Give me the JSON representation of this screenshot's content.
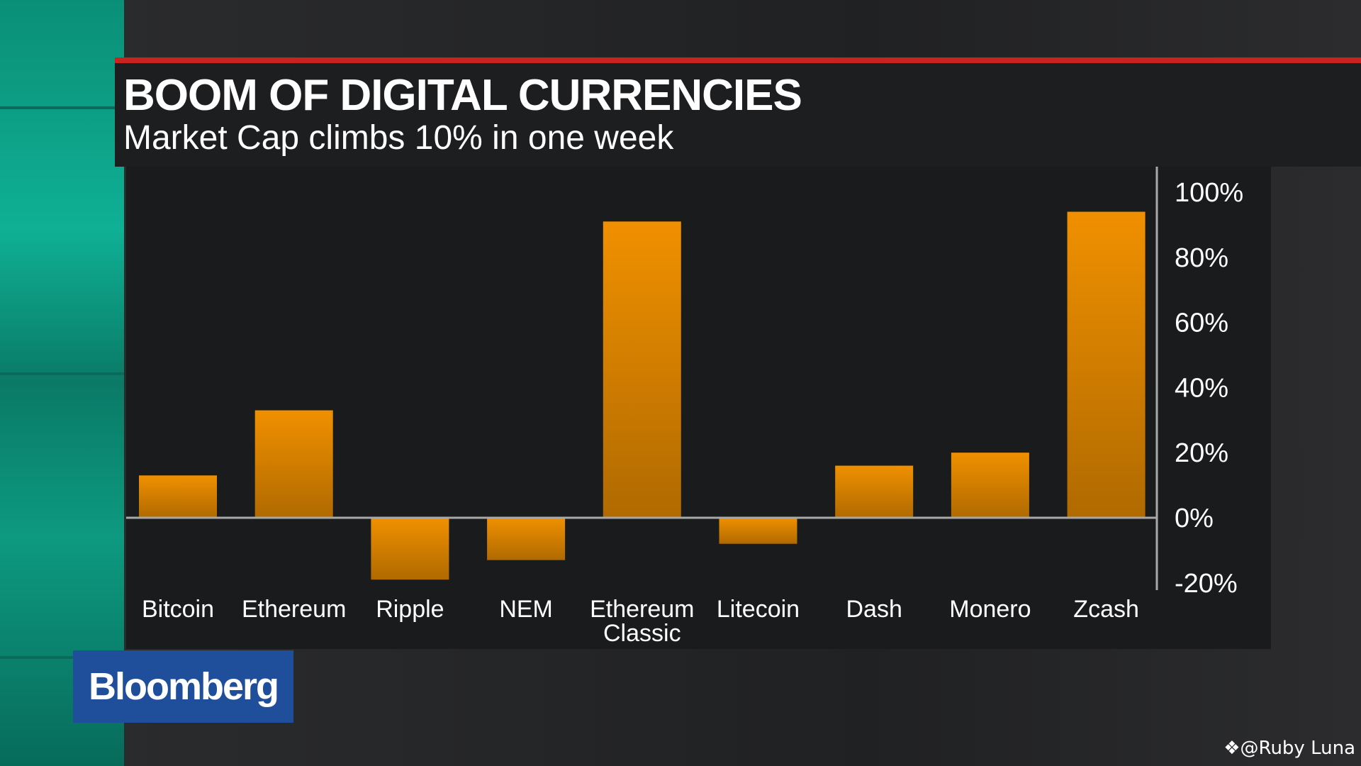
{
  "header": {
    "title": "BOOM OF DIGITAL CURRENCIES",
    "subtitle": "Market Cap climbs 10% in one week"
  },
  "logo": "Bloomberg",
  "watermark": "@Ruby Luna",
  "colors": {
    "bar": "#f09000",
    "bar_bottom": "#b06a00",
    "accent_red": "#c8231e",
    "logo_blue": "#1f4e9a",
    "background": "#1a1b1d"
  },
  "chart_data": {
    "type": "bar",
    "title": "BOOM OF DIGITAL CURRENCIES",
    "subtitle": "Market Cap climbs 10% in one week",
    "categories": [
      "Bitcoin",
      "Ethereum",
      "Ripple",
      "NEM",
      "Ethereum Classic",
      "Litecoin",
      "Dash",
      "Monero",
      "Zcash"
    ],
    "values": [
      13,
      33,
      -19,
      -13,
      91,
      -8,
      16,
      20,
      94
    ],
    "unit": "%",
    "ylim": [
      -20,
      100
    ],
    "yticks": [
      "100%",
      "80%",
      "60%",
      "40%",
      "20%",
      "0%",
      "-20%"
    ],
    "ytick_values": [
      100,
      80,
      60,
      40,
      20,
      0,
      -20
    ],
    "axis_position": "right",
    "grid": false,
    "xlabel": "",
    "ylabel": ""
  }
}
